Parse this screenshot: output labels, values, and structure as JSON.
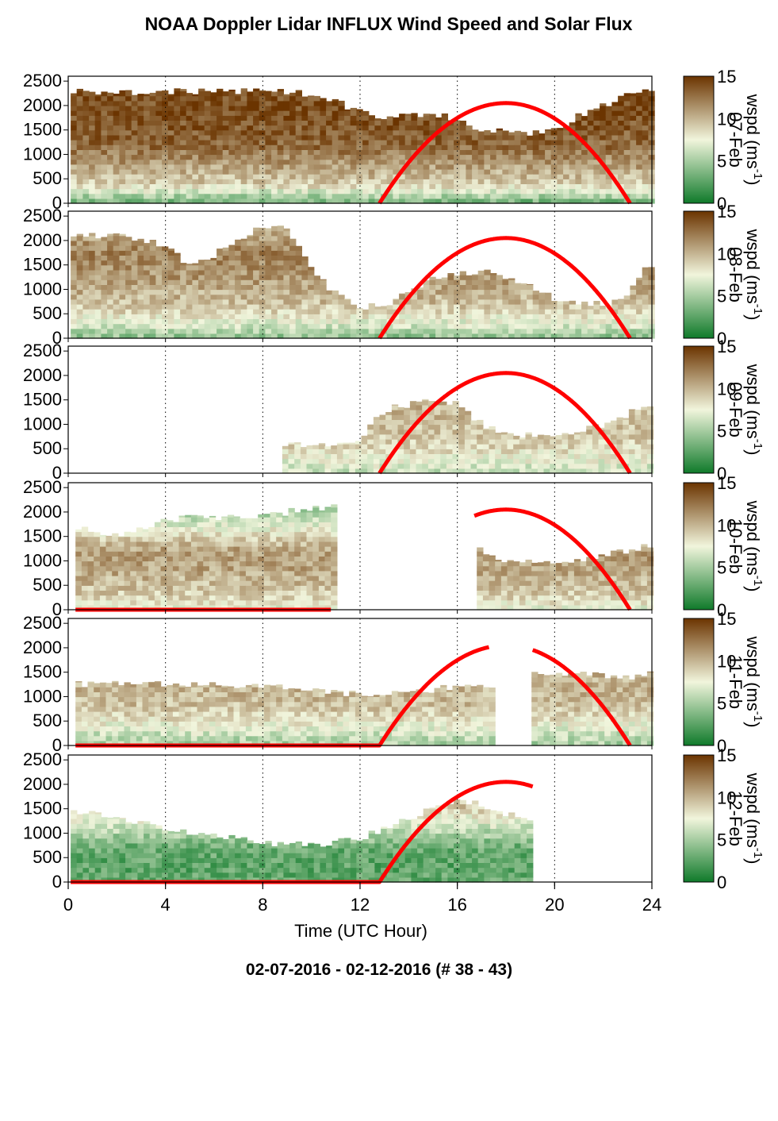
{
  "title": "NOAA Doppler Lidar INFLUX Wind Speed and Solar Flux",
  "subtitle": "02-07-2016 - 02-12-2016   (# 38 - 43)",
  "colors": {
    "low": "#0f7a2a",
    "mid": "#f1f5dc",
    "high": "#6b3400",
    "solar": "#ff0000",
    "frame": "#000000"
  },
  "chart_data": {
    "type": "heatmap",
    "xlabel": "Time (UTC Hour)",
    "xlim": [
      0,
      24
    ],
    "x_ticks": [
      "0",
      "4",
      "8",
      "12",
      "16",
      "20",
      "24"
    ],
    "ylim": [
      0,
      2600
    ],
    "y_ticks": [
      "0",
      "500",
      "1000",
      "1500",
      "2000",
      "2500"
    ],
    "colorbar": {
      "label": "wspd (ms",
      "label_sup": "-1",
      "label_close": ")",
      "range": [
        0,
        15
      ],
      "ticks": [
        "0",
        "5",
        "10",
        "15"
      ]
    },
    "solar_flux_curve": {
      "sunrise_hour": 12.8,
      "peak_hour": 18,
      "sunset_hour": 23.1,
      "peak_height": 2050
    },
    "panels": [
      {
        "date": "07-Feb",
        "data_start": 0.1,
        "data_end": 23.9,
        "gaps": [],
        "top": [
          [
            0,
            2300
          ],
          [
            2,
            2250
          ],
          [
            4,
            2300
          ],
          [
            6,
            2300
          ],
          [
            8,
            2300
          ],
          [
            9.5,
            2250
          ],
          [
            10.5,
            2150
          ],
          [
            12,
            1900
          ],
          [
            13,
            1700
          ],
          [
            14,
            1800
          ],
          [
            15,
            1850
          ],
          [
            16,
            1700
          ],
          [
            17,
            1500
          ],
          [
            18,
            1500
          ],
          [
            19,
            1450
          ],
          [
            20,
            1500
          ],
          [
            21,
            1800
          ],
          [
            22,
            2000
          ],
          [
            23,
            2200
          ],
          [
            23.9,
            2350
          ]
        ],
        "profile": [
          [
            0,
            3
          ],
          [
            80,
            4
          ],
          [
            200,
            6
          ],
          [
            400,
            9
          ],
          [
            800,
            11
          ],
          [
            1200,
            13
          ],
          [
            1800,
            14
          ],
          [
            2400,
            14
          ]
        ],
        "solar": [
          [
            12.8,
            23.1
          ]
        ]
      },
      {
        "date": "08-Feb",
        "data_start": 0.1,
        "data_end": 23.9,
        "gaps": [],
        "top": [
          [
            0,
            2100
          ],
          [
            2,
            2100
          ],
          [
            4,
            1900
          ],
          [
            5,
            1500
          ],
          [
            6,
            1700
          ],
          [
            7,
            2000
          ],
          [
            8,
            2300
          ],
          [
            9,
            2300
          ],
          [
            10,
            1400
          ],
          [
            11,
            900
          ],
          [
            12,
            600
          ],
          [
            13,
            700
          ],
          [
            14,
            900
          ],
          [
            15,
            1200
          ],
          [
            16,
            1300
          ],
          [
            17,
            1400
          ],
          [
            18,
            1200
          ],
          [
            19,
            1100
          ],
          [
            20,
            800
          ],
          [
            21,
            700
          ],
          [
            22,
            700
          ],
          [
            23,
            900
          ],
          [
            23.9,
            1500
          ]
        ],
        "profile": [
          [
            0,
            4
          ],
          [
            100,
            5
          ],
          [
            300,
            7
          ],
          [
            700,
            9.5
          ],
          [
            1200,
            11
          ],
          [
            1800,
            12
          ],
          [
            2400,
            9
          ]
        ],
        "solar": [
          [
            12.8,
            23.1
          ]
        ]
      },
      {
        "date": "09-Feb",
        "data_start": 8.8,
        "data_end": 23.9,
        "gaps": [],
        "top": [
          [
            8.8,
            600
          ],
          [
            10,
            600
          ],
          [
            11,
            600
          ],
          [
            12,
            650
          ],
          [
            12.8,
            1200
          ],
          [
            13.5,
            1400
          ],
          [
            14,
            1400
          ],
          [
            15,
            1500
          ],
          [
            16,
            1400
          ],
          [
            17,
            1000
          ],
          [
            18,
            800
          ],
          [
            19,
            800
          ],
          [
            20,
            800
          ],
          [
            21,
            850
          ],
          [
            22,
            1000
          ],
          [
            23,
            1200
          ],
          [
            23.9,
            1400
          ]
        ],
        "profile": [
          [
            0,
            6
          ],
          [
            200,
            7
          ],
          [
            500,
            8.5
          ],
          [
            900,
            9.5
          ],
          [
            1400,
            10
          ],
          [
            2400,
            10
          ]
        ],
        "solar": [
          [
            12.8,
            23.1
          ]
        ]
      },
      {
        "date": "10-Feb",
        "data_start": 0.3,
        "data_end": 23.9,
        "gaps": [
          [
            11.0,
            16.7
          ]
        ],
        "top": [
          [
            0.3,
            1700
          ],
          [
            1,
            1600
          ],
          [
            2,
            1500
          ],
          [
            3,
            1700
          ],
          [
            4,
            1800
          ],
          [
            5,
            1900
          ],
          [
            6,
            1900
          ],
          [
            7,
            1900
          ],
          [
            8,
            1900
          ],
          [
            9,
            2000
          ],
          [
            10,
            2100
          ],
          [
            11,
            2100
          ],
          [
            16.7,
            1250
          ],
          [
            18,
            1000
          ],
          [
            20,
            1000
          ],
          [
            22,
            1100
          ],
          [
            23.9,
            1300
          ]
        ],
        "profile": [
          [
            0,
            7
          ],
          [
            300,
            9
          ],
          [
            800,
            10.5
          ],
          [
            1200,
            11
          ],
          [
            1600,
            8
          ],
          [
            2000,
            5
          ],
          [
            2400,
            4
          ]
        ],
        "solar": [
          [
            0.3,
            10.8
          ],
          [
            16.7,
            23.1
          ]
        ]
      },
      {
        "date": "11-Feb",
        "data_start": 0.3,
        "data_end": 23.9,
        "gaps": [
          [
            17.6,
            19.1
          ]
        ],
        "top": [
          [
            0.3,
            1250
          ],
          [
            2,
            1250
          ],
          [
            4,
            1250
          ],
          [
            6,
            1250
          ],
          [
            8,
            1200
          ],
          [
            10,
            1150
          ],
          [
            11,
            1100
          ],
          [
            12,
            1050
          ],
          [
            14,
            1100
          ],
          [
            16,
            1200
          ],
          [
            17.6,
            1250
          ],
          [
            19.1,
            1500
          ],
          [
            21,
            1450
          ],
          [
            23,
            1400
          ],
          [
            23.9,
            1450
          ]
        ],
        "profile": [
          [
            0,
            5
          ],
          [
            200,
            6
          ],
          [
            500,
            8
          ],
          [
            800,
            9.5
          ],
          [
            1200,
            10
          ],
          [
            2400,
            10
          ]
        ],
        "solar": [
          [
            0.3,
            17.3
          ],
          [
            19.1,
            23.1
          ]
        ]
      },
      {
        "date": "12-Feb",
        "data_start": 0.1,
        "data_end": 19.1,
        "gaps": [],
        "top": [
          [
            0,
            1500
          ],
          [
            2,
            1300
          ],
          [
            4,
            1100
          ],
          [
            6,
            950
          ],
          [
            8,
            800
          ],
          [
            10,
            750
          ],
          [
            12,
            900
          ],
          [
            13,
            1100
          ],
          [
            14,
            1300
          ],
          [
            15,
            1500
          ],
          [
            16,
            1700
          ],
          [
            17,
            1600
          ],
          [
            18,
            1400
          ],
          [
            19,
            1200
          ],
          [
            19.1,
            1100
          ]
        ],
        "profile": [
          [
            0,
            3
          ],
          [
            300,
            2.5
          ],
          [
            700,
            3
          ],
          [
            1100,
            6
          ],
          [
            1500,
            9
          ],
          [
            2000,
            11
          ],
          [
            2500,
            13
          ]
        ],
        "solar": [
          [
            0.1,
            19.1
          ]
        ]
      }
    ]
  }
}
